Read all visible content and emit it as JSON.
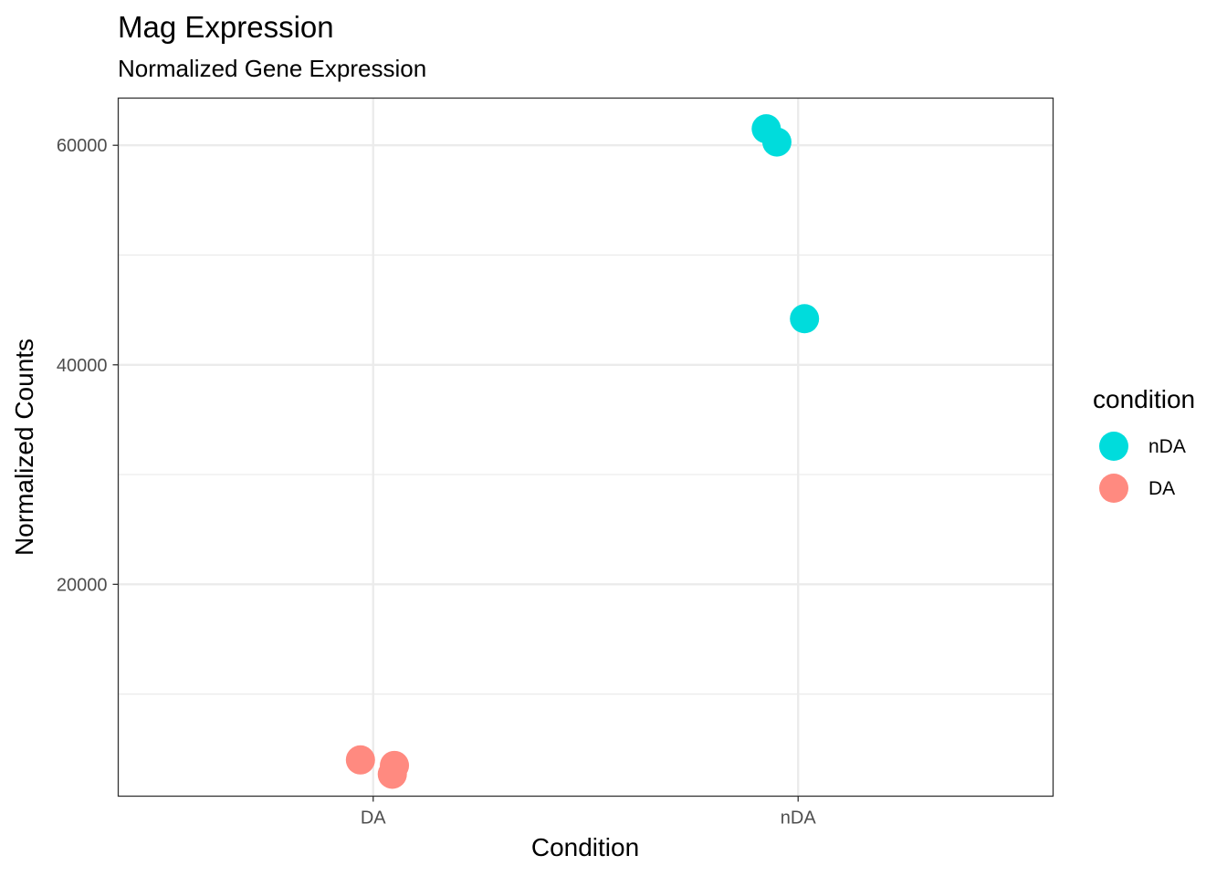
{
  "chart_data": {
    "type": "scatter",
    "title": "Mag Expression",
    "subtitle": "Normalized Gene Expression",
    "xlabel": "Condition",
    "ylabel": "Normalized Counts",
    "categories": [
      "DA",
      "nDA"
    ],
    "ylim": [
      700,
      64300
    ],
    "yticks": [
      20000,
      40000,
      60000
    ],
    "y_minor_ticks": [
      10000,
      30000,
      50000
    ],
    "y_tick_labels": [
      "20000",
      "40000",
      "60000"
    ],
    "grid": true,
    "legend": {
      "title": "condition",
      "position": "right",
      "entries": [
        {
          "label": "nDA",
          "color": "#00dcdc"
        },
        {
          "label": "DA",
          "color": "#ff8a80"
        }
      ]
    },
    "series": [
      {
        "name": "DA",
        "color": "#ff8a80",
        "points": [
          {
            "x": "DA",
            "jitter": -0.03,
            "y": 4000
          },
          {
            "x": "DA",
            "jitter": 0.05,
            "y": 3500
          },
          {
            "x": "DA",
            "jitter": 0.045,
            "y": 2700
          }
        ]
      },
      {
        "name": "nDA",
        "color": "#00dcdc",
        "points": [
          {
            "x": "nDA",
            "jitter": -0.075,
            "y": 61500
          },
          {
            "x": "nDA",
            "jitter": -0.05,
            "y": 60300
          },
          {
            "x": "nDA",
            "jitter": 0.015,
            "y": 44200
          }
        ]
      }
    ]
  }
}
